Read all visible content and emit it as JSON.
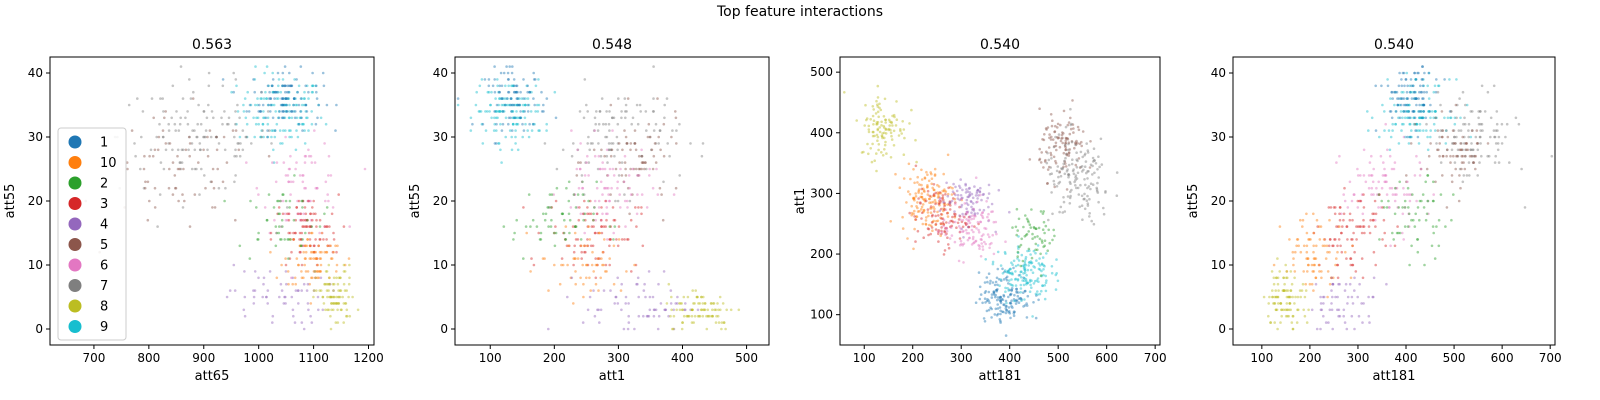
{
  "figure": {
    "title": "Top feature interactions"
  },
  "legend": {
    "placement": "lower-left of first panel",
    "entries": [
      {
        "label": "1",
        "color": "#1f77b4"
      },
      {
        "label": "10",
        "color": "#ff7f0e"
      },
      {
        "label": "2",
        "color": "#2ca02c"
      },
      {
        "label": "3",
        "color": "#d62728"
      },
      {
        "label": "4",
        "color": "#9467bd"
      },
      {
        "label": "5",
        "color": "#8c564b"
      },
      {
        "label": "6",
        "color": "#e377c2"
      },
      {
        "label": "7",
        "color": "#7f7f7f"
      },
      {
        "label": "8",
        "color": "#bcbd22"
      },
      {
        "label": "9",
        "color": "#17becf"
      }
    ]
  },
  "chart_data": [
    {
      "type": "scatter",
      "title": "0.563",
      "xlabel": "att65",
      "ylabel": "att55",
      "xlim": [
        620,
        1210
      ],
      "ylim": [
        -2.5,
        42.5
      ],
      "xticks": [
        700,
        800,
        900,
        1000,
        1100,
        1200
      ],
      "yticks": [
        0,
        10,
        20,
        30,
        40
      ],
      "grid": false,
      "clusters": [
        {
          "class": "9",
          "center": [
            1040,
            34
          ],
          "spread": [
            65,
            5
          ],
          "n": 150
        },
        {
          "class": "1",
          "center": [
            1050,
            36
          ],
          "spread": [
            55,
            4
          ],
          "n": 110
        },
        {
          "class": "7",
          "center": [
            890,
            30
          ],
          "spread": [
            120,
            7
          ],
          "n": 130
        },
        {
          "class": "5",
          "center": [
            860,
            24
          ],
          "spread": [
            110,
            8
          ],
          "n": 70
        },
        {
          "class": "6",
          "center": [
            1080,
            22
          ],
          "spread": [
            60,
            6
          ],
          "n": 80
        },
        {
          "class": "3",
          "center": [
            1085,
            15
          ],
          "spread": [
            50,
            5
          ],
          "n": 90
        },
        {
          "class": "10",
          "center": [
            1100,
            11
          ],
          "spread": [
            45,
            4
          ],
          "n": 80
        },
        {
          "class": "2",
          "center": [
            1040,
            17
          ],
          "spread": [
            65,
            5
          ],
          "n": 50
        },
        {
          "class": "4",
          "center": [
            1030,
            5
          ],
          "spread": [
            75,
            4
          ],
          "n": 60
        },
        {
          "class": "8",
          "center": [
            1140,
            5
          ],
          "spread": [
            30,
            4
          ],
          "n": 90
        }
      ]
    },
    {
      "type": "scatter",
      "title": "0.548",
      "xlabel": "att1",
      "ylabel": "att55",
      "xlim": [
        45,
        535
      ],
      "ylim": [
        -2.5,
        42.5
      ],
      "xticks": [
        100,
        200,
        300,
        400,
        500
      ],
      "yticks": [
        0,
        10,
        20,
        30,
        40
      ],
      "grid": false,
      "clusters": [
        {
          "class": "9",
          "center": [
            130,
            34
          ],
          "spread": [
            45,
            4
          ],
          "n": 140
        },
        {
          "class": "1",
          "center": [
            140,
            36
          ],
          "spread": [
            40,
            4
          ],
          "n": 90
        },
        {
          "class": "7",
          "center": [
            300,
            30
          ],
          "spread": [
            80,
            7
          ],
          "n": 110
        },
        {
          "class": "5",
          "center": [
            330,
            26
          ],
          "spread": [
            60,
            6
          ],
          "n": 70
        },
        {
          "class": "6",
          "center": [
            280,
            22
          ],
          "spread": [
            60,
            6
          ],
          "n": 90
        },
        {
          "class": "3",
          "center": [
            260,
            15
          ],
          "spread": [
            60,
            5
          ],
          "n": 90
        },
        {
          "class": "2",
          "center": [
            200,
            17
          ],
          "spread": [
            55,
            5
          ],
          "n": 60
        },
        {
          "class": "10",
          "center": [
            250,
            10
          ],
          "spread": [
            60,
            5
          ],
          "n": 60
        },
        {
          "class": "4",
          "center": [
            330,
            4
          ],
          "spread": [
            70,
            4
          ],
          "n": 70
        },
        {
          "class": "8",
          "center": [
            430,
            3
          ],
          "spread": [
            45,
            3
          ],
          "n": 90
        }
      ]
    },
    {
      "type": "scatter",
      "title": "0.540",
      "xlabel": "att181",
      "ylabel": "att1",
      "xlim": [
        50,
        710
      ],
      "ylim": [
        50,
        525
      ],
      "xticks": [
        100,
        200,
        300,
        400,
        500,
        600,
        700
      ],
      "yticks": [
        100,
        200,
        300,
        400,
        500
      ],
      "grid": false,
      "clusters": [
        {
          "class": "8",
          "center": [
            140,
            410
          ],
          "spread": [
            40,
            45
          ],
          "n": 110
        },
        {
          "class": "10",
          "center": [
            230,
            290
          ],
          "spread": [
            45,
            45
          ],
          "n": 150
        },
        {
          "class": "3",
          "center": [
            260,
            260
          ],
          "spread": [
            45,
            40
          ],
          "n": 110
        },
        {
          "class": "4",
          "center": [
            310,
            290
          ],
          "spread": [
            45,
            35
          ],
          "n": 90
        },
        {
          "class": "6",
          "center": [
            320,
            240
          ],
          "spread": [
            50,
            40
          ],
          "n": 110
        },
        {
          "class": "1",
          "center": [
            390,
            130
          ],
          "spread": [
            45,
            35
          ],
          "n": 150
        },
        {
          "class": "9",
          "center": [
            430,
            170
          ],
          "spread": [
            45,
            40
          ],
          "n": 150
        },
        {
          "class": "2",
          "center": [
            450,
            230
          ],
          "spread": [
            40,
            35
          ],
          "n": 60
        },
        {
          "class": "5",
          "center": [
            510,
            380
          ],
          "spread": [
            40,
            45
          ],
          "n": 110
        },
        {
          "class": "7",
          "center": [
            540,
            320
          ],
          "spread": [
            60,
            60
          ],
          "n": 150
        }
      ]
    },
    {
      "type": "scatter",
      "title": "0.540",
      "xlabel": "att181",
      "ylabel": "att55",
      "xlim": [
        40,
        710
      ],
      "ylim": [
        -2.5,
        42.5
      ],
      "xticks": [
        100,
        200,
        300,
        400,
        500,
        600,
        700
      ],
      "yticks": [
        0,
        10,
        20,
        30,
        40
      ],
      "grid": false,
      "clusters": [
        {
          "class": "9",
          "center": [
            420,
            34
          ],
          "spread": [
            60,
            4
          ],
          "n": 140
        },
        {
          "class": "1",
          "center": [
            410,
            36
          ],
          "spread": [
            50,
            4
          ],
          "n": 100
        },
        {
          "class": "7",
          "center": [
            540,
            30
          ],
          "spread": [
            70,
            6
          ],
          "n": 110
        },
        {
          "class": "5",
          "center": [
            500,
            27
          ],
          "spread": [
            60,
            5
          ],
          "n": 70
        },
        {
          "class": "6",
          "center": [
            350,
            22
          ],
          "spread": [
            70,
            6
          ],
          "n": 90
        },
        {
          "class": "3",
          "center": [
            290,
            15
          ],
          "spread": [
            60,
            5
          ],
          "n": 90
        },
        {
          "class": "2",
          "center": [
            420,
            17
          ],
          "spread": [
            60,
            5
          ],
          "n": 60
        },
        {
          "class": "10",
          "center": [
            210,
            12
          ],
          "spread": [
            55,
            5
          ],
          "n": 80
        },
        {
          "class": "4",
          "center": [
            270,
            4
          ],
          "spread": [
            60,
            4
          ],
          "n": 60
        },
        {
          "class": "8",
          "center": [
            150,
            5
          ],
          "spread": [
            35,
            4
          ],
          "n": 100
        }
      ]
    }
  ]
}
